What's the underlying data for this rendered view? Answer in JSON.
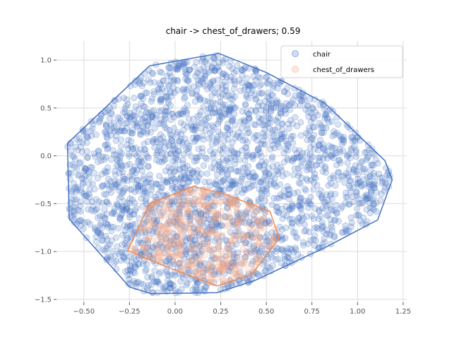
{
  "chart_data": {
    "type": "scatter",
    "title": "chair -> chest_of_drawers; 0.59",
    "xlabel": "",
    "ylabel": "",
    "xlim": [
      -0.65,
      1.27
    ],
    "ylim": [
      -1.53,
      1.2
    ],
    "xticks": [
      -0.5,
      -0.25,
      0.0,
      0.25,
      0.5,
      0.75,
      1.0,
      1.25
    ],
    "xtick_labels": [
      "−0.50",
      "−0.25",
      "0.00",
      "0.25",
      "0.50",
      "0.75",
      "1.00",
      "1.25"
    ],
    "yticks": [
      -1.5,
      -1.0,
      -0.5,
      0.0,
      0.5,
      1.0
    ],
    "ytick_labels": [
      "−1.5",
      "−1.0",
      "−0.5",
      "0.0",
      "0.5",
      "1.0"
    ],
    "grid": true,
    "legend": {
      "position": "top-right",
      "entries": [
        "chair",
        "chest_of_drawers"
      ]
    },
    "series": [
      {
        "name": "chair",
        "color": "#4472c4",
        "hull": [
          [
            -0.59,
            0.13
          ],
          [
            -0.58,
            -0.66
          ],
          [
            -0.25,
            -1.37
          ],
          [
            -0.13,
            -1.44
          ],
          [
            0.23,
            -1.43
          ],
          [
            0.44,
            -1.3
          ],
          [
            0.83,
            -0.95
          ],
          [
            1.11,
            -0.67
          ],
          [
            1.19,
            -0.25
          ],
          [
            1.15,
            -0.05
          ],
          [
            0.82,
            0.55
          ],
          [
            0.5,
            0.87
          ],
          [
            0.24,
            1.07
          ],
          [
            -0.14,
            0.94
          ]
        ],
        "point_count": 2500
      },
      {
        "name": "chest_of_drawers",
        "color": "#f4a582",
        "hull": [
          [
            -0.26,
            -0.99
          ],
          [
            -0.14,
            -0.5
          ],
          [
            0.1,
            -0.32
          ],
          [
            0.27,
            -0.4
          ],
          [
            0.52,
            -0.58
          ],
          [
            0.57,
            -0.86
          ],
          [
            0.42,
            -1.24
          ],
          [
            0.23,
            -1.36
          ],
          [
            -0.06,
            -1.15
          ]
        ],
        "point_count": 450
      }
    ]
  }
}
